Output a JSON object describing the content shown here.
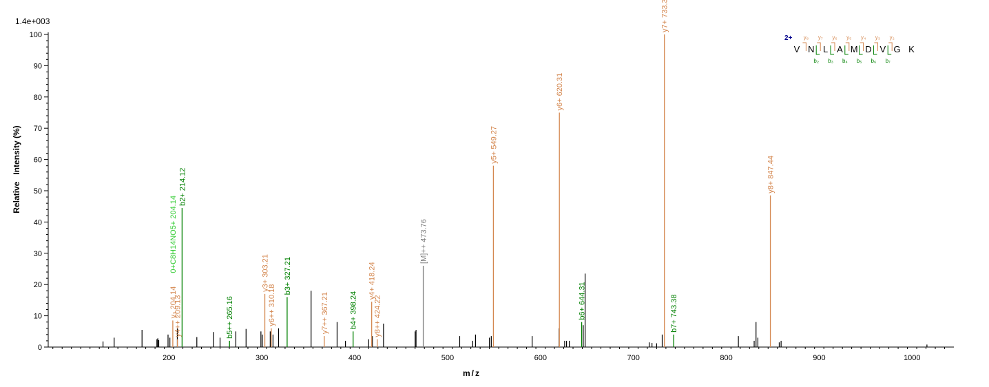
{
  "chart_data": {
    "type": "bar",
    "scale_label": "1.4e+003",
    "xlabel": "m/z",
    "ylabel": "Relative   Intensity (%)",
    "xlim": [
      70,
      1045
    ],
    "ylim": [
      0,
      100
    ],
    "x_ticks": [
      200,
      300,
      400,
      500,
      600,
      700,
      800,
      900,
      1000
    ],
    "y_ticks": [
      0,
      10,
      20,
      30,
      40,
      50,
      60,
      70,
      80,
      90,
      100
    ],
    "colors": {
      "y_ion": "#d4874f",
      "b_ion": "#008000",
      "neutral_loss": "#33cc33",
      "precursor": "#808080",
      "unassigned": "#000000",
      "charge": "#00008b"
    },
    "peaks": [
      {
        "x": 129,
        "y": 1.8
      },
      {
        "x": 141,
        "y": 3
      },
      {
        "x": 171,
        "y": 5.5
      },
      {
        "x": 187,
        "y": 2.5
      },
      {
        "x": 188,
        "y": 2.8
      },
      {
        "x": 189,
        "y": 2.2
      },
      {
        "x": 199,
        "y": 4
      },
      {
        "x": 201,
        "y": 3
      },
      {
        "x": 209,
        "y": 6
      },
      {
        "x": 230,
        "y": 3.2
      },
      {
        "x": 248,
        "y": 4.8
      },
      {
        "x": 255,
        "y": 3
      },
      {
        "x": 272,
        "y": 5
      },
      {
        "x": 283,
        "y": 5.8
      },
      {
        "x": 299,
        "y": 5
      },
      {
        "x": 300.5,
        "y": 4
      },
      {
        "x": 309,
        "y": 5
      },
      {
        "x": 312,
        "y": 4
      },
      {
        "x": 318,
        "y": 6
      },
      {
        "x": 353,
        "y": 18
      },
      {
        "x": 381,
        "y": 8
      },
      {
        "x": 390,
        "y": 2
      },
      {
        "x": 415,
        "y": 2.5
      },
      {
        "x": 419,
        "y": 3.5
      },
      {
        "x": 431,
        "y": 7.5
      },
      {
        "x": 465,
        "y": 5
      },
      {
        "x": 466,
        "y": 5.5
      },
      {
        "x": 513,
        "y": 3.5
      },
      {
        "x": 527,
        "y": 2
      },
      {
        "x": 530,
        "y": 4
      },
      {
        "x": 545,
        "y": 3
      },
      {
        "x": 547,
        "y": 3.5
      },
      {
        "x": 591,
        "y": 3.5
      },
      {
        "x": 620,
        "y": 6
      },
      {
        "x": 626,
        "y": 2
      },
      {
        "x": 628,
        "y": 2
      },
      {
        "x": 631,
        "y": 2
      },
      {
        "x": 646,
        "y": 7
      },
      {
        "x": 648,
        "y": 23.5
      },
      {
        "x": 717,
        "y": 1.5
      },
      {
        "x": 720,
        "y": 1.3
      },
      {
        "x": 725,
        "y": 1.2
      },
      {
        "x": 731,
        "y": 4
      },
      {
        "x": 813,
        "y": 3.5
      },
      {
        "x": 830,
        "y": 2
      },
      {
        "x": 832,
        "y": 8
      },
      {
        "x": 834,
        "y": 3
      },
      {
        "x": 857,
        "y": 1.5
      },
      {
        "x": 859,
        "y": 2
      },
      {
        "x": 1016,
        "y": 0.8
      }
    ],
    "annotated_peaks": [
      {
        "x": 204.14,
        "y": 8.5,
        "label": "y₃ 204.14",
        "kind": "y_ion"
      },
      {
        "x": 209.13,
        "y": 2.5,
        "label": "y4++ 209.13",
        "kind": "y_ion"
      },
      {
        "x": 204.14,
        "y": 23,
        "label": "0+C8H14NO5+ 204.14",
        "kind": "neutral_loss",
        "no_line": true
      },
      {
        "x": 214.12,
        "y": 44.5,
        "label": "b2+ 214.12",
        "kind": "b_ion"
      },
      {
        "x": 265.16,
        "y": 2,
        "label": "b5++ 265.16",
        "kind": "b_ion"
      },
      {
        "x": 303.21,
        "y": 17,
        "label": "y3+ 303.21",
        "kind": "y_ion"
      },
      {
        "x": 310.18,
        "y": 6,
        "label": "y6++ 310.18",
        "kind": "y_ion"
      },
      {
        "x": 327.21,
        "y": 16,
        "label": "b3+ 327.21",
        "kind": "b_ion"
      },
      {
        "x": 367.21,
        "y": 3.5,
        "label": "y7++ 367.21",
        "kind": "y_ion"
      },
      {
        "x": 398.24,
        "y": 5,
        "label": "b4+ 398.24",
        "kind": "b_ion"
      },
      {
        "x": 418.24,
        "y": 14.5,
        "label": "y4+ 418.24",
        "kind": "y_ion"
      },
      {
        "x": 424.22,
        "y": 2.5,
        "label": "y8++ 424.22",
        "kind": "y_ion"
      },
      {
        "x": 473.76,
        "y": 26,
        "label": "[M]++ 473.76",
        "kind": "precursor"
      },
      {
        "x": 549.27,
        "y": 58,
        "label": "y5+ 549.27",
        "kind": "y_ion"
      },
      {
        "x": 620.31,
        "y": 75,
        "label": "y6+ 620.31",
        "kind": "y_ion"
      },
      {
        "x": 644.31,
        "y": 8,
        "label": "b6+ 644.31",
        "kind": "b_ion"
      },
      {
        "x": 733.39,
        "y": 100,
        "label": "y7+ 733.39",
        "kind": "y_ion"
      },
      {
        "x": 743.38,
        "y": 4,
        "label": "b7+ 743.38",
        "kind": "b_ion"
      },
      {
        "x": 847.44,
        "y": 48.5,
        "label": "y8+ 847.44",
        "kind": "y_ion"
      }
    ],
    "sequence": {
      "charge": "2+",
      "residues": [
        "V",
        "N",
        "L",
        "A",
        "M",
        "D",
        "V",
        "G",
        "K"
      ],
      "y_labels": [
        "y₈",
        "y₇",
        "y₆",
        "y₅",
        "y₄",
        "y₃",
        "y₂"
      ],
      "b_labels": [
        "b₂",
        "b₃",
        "b₄",
        "b₅",
        "b₆",
        "b₇"
      ]
    }
  }
}
